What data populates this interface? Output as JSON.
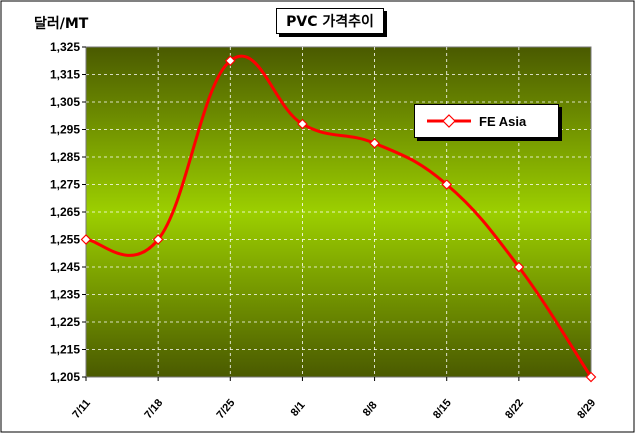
{
  "chart_data": {
    "type": "line",
    "title": "PVC 가격추이",
    "ylabel": "달러/MT",
    "xlabel": "",
    "categories": [
      "7/11",
      "7/18",
      "7/25",
      "8/1",
      "8/8",
      "8/15",
      "8/22",
      "8/29"
    ],
    "series": [
      {
        "name": "FE Asia",
        "values": [
          1255,
          1255,
          1320,
          1297,
          1290,
          1275,
          1245,
          1205
        ],
        "color": "#ff0000"
      }
    ],
    "ylim": [
      1205,
      1325
    ],
    "yticks": [
      1205,
      1215,
      1225,
      1235,
      1245,
      1255,
      1265,
      1275,
      1285,
      1295,
      1305,
      1315,
      1325
    ],
    "ytick_labels": [
      "1,205",
      "1,215",
      "1,225",
      "1,235",
      "1,245",
      "1,255",
      "1,265",
      "1,275",
      "1,285",
      "1,295",
      "1,305",
      "1,315",
      "1,325"
    ],
    "grid": true,
    "legend_position": "top-right",
    "marker": "diamond-open",
    "colors": {
      "plot_top": "#4a5a00",
      "plot_mid": "#9ccf00",
      "plot_bottom": "#4a5a00",
      "line": "#ff0000"
    }
  }
}
